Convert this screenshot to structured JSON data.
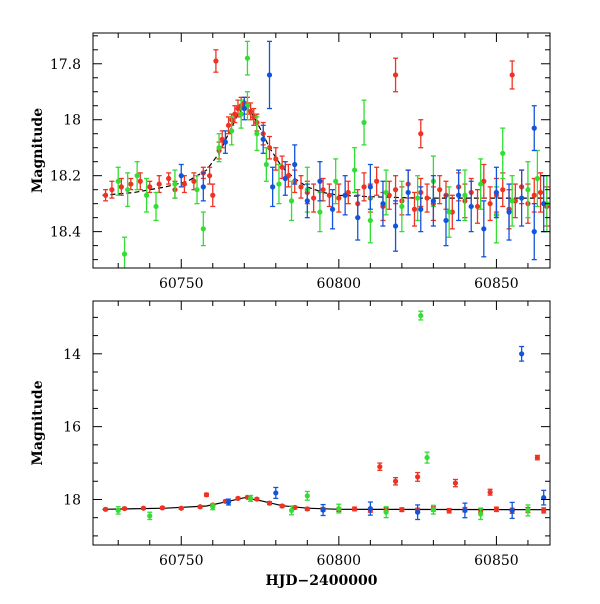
{
  "colors": {
    "red": "#ee3322",
    "green": "#33dd33",
    "blue": "#1155dd",
    "model": "#000000"
  },
  "chart_data": [
    {
      "type": "scatter",
      "panel": "top",
      "xlabel": "",
      "ylabel": "Magnitude",
      "xlim": [
        60722,
        60867
      ],
      "ylim": [
        18.53,
        17.69
      ],
      "y_inverted": true,
      "x_ticks": [
        60750,
        60800,
        60850
      ],
      "x_tick_labels": [
        "60750",
        "60800",
        "60850"
      ],
      "y_ticks": [
        17.8,
        18,
        18.2,
        18.4
      ],
      "y_tick_labels": [
        "17.8",
        "18",
        "18.2",
        "18.4"
      ],
      "model_curve": {
        "x": [
          60725,
          60735,
          60745,
          60752,
          60758,
          60762,
          60765,
          60768,
          60770,
          60772,
          60775,
          60778,
          60782,
          60786,
          60790,
          60795,
          60800,
          60810,
          60825,
          60850,
          60867
        ],
        "y": [
          18.27,
          18.26,
          18.24,
          18.22,
          18.18,
          18.12,
          18.05,
          17.98,
          17.95,
          17.97,
          18.03,
          18.1,
          18.17,
          18.21,
          18.24,
          18.26,
          18.27,
          18.275,
          18.28,
          18.28,
          18.28
        ]
      },
      "series": [
        {
          "color": "red",
          "x": [
            60726,
            60728,
            60731,
            60734,
            60737,
            60740,
            60743,
            60746,
            60748,
            60751,
            60754,
            60757,
            60759,
            60760,
            60762,
            60763,
            60765,
            60766,
            60767,
            60768,
            60769,
            60770,
            60771,
            60772,
            60773,
            60774,
            60776,
            60778,
            60780,
            60782,
            60784,
            60786,
            60788,
            60790,
            60792,
            60795,
            60797,
            60800,
            60803,
            60806,
            60808,
            60810,
            60812,
            60814,
            60816,
            60818,
            60820,
            60822,
            60824,
            60826,
            60828,
            60830,
            60832,
            60834,
            60836,
            60838,
            60840,
            60842,
            60844,
            60846,
            60848,
            60850,
            60852,
            60854,
            60856,
            60858,
            60860,
            60862,
            60864,
            60866,
            60761,
            60818,
            60855,
            60826
          ],
          "y": [
            18.27,
            18.25,
            18.24,
            18.23,
            18.22,
            18.24,
            18.23,
            18.21,
            18.25,
            18.23,
            18.22,
            18.19,
            18.2,
            18.27,
            18.11,
            18.07,
            18.02,
            18,
            17.98,
            17.96,
            17.95,
            17.94,
            17.95,
            17.97,
            17.99,
            18.01,
            18.05,
            18.1,
            18.14,
            18.17,
            18.2,
            18.22,
            18.24,
            18.26,
            18.28,
            18.25,
            18.27,
            18.28,
            18.26,
            18.3,
            18.24,
            18.28,
            18.22,
            18.31,
            18.27,
            18.25,
            18.29,
            18.23,
            18.32,
            18.26,
            18.28,
            18.3,
            18.25,
            18.27,
            18.33,
            18.24,
            18.29,
            18.26,
            18.31,
            18.22,
            18.3,
            18.27,
            18.25,
            18.32,
            18.29,
            18.24,
            18.3,
            18.27,
            18.26,
            18.31,
            17.79,
            17.84,
            17.84,
            18.05
          ],
          "err": [
            0.02,
            0.03,
            0.03,
            0.02,
            0.03,
            0.02,
            0.03,
            0.02,
            0.03,
            0.03,
            0.03,
            0.02,
            0.03,
            0.04,
            0.03,
            0.03,
            0.03,
            0.02,
            0.03,
            0.03,
            0.03,
            0.02,
            0.03,
            0.03,
            0.03,
            0.03,
            0.04,
            0.04,
            0.04,
            0.04,
            0.04,
            0.04,
            0.04,
            0.04,
            0.05,
            0.04,
            0.04,
            0.05,
            0.04,
            0.05,
            0.05,
            0.05,
            0.05,
            0.05,
            0.05,
            0.05,
            0.05,
            0.05,
            0.06,
            0.05,
            0.05,
            0.06,
            0.05,
            0.05,
            0.06,
            0.05,
            0.06,
            0.05,
            0.06,
            0.06,
            0.06,
            0.06,
            0.06,
            0.07,
            0.06,
            0.06,
            0.07,
            0.06,
            0.07,
            0.07,
            0.04,
            0.06,
            0.05,
            0.05
          ]
        },
        {
          "color": "green",
          "x": [
            60730,
            60733,
            60736,
            60739,
            60742,
            60748,
            60755,
            60762,
            60766,
            60769,
            60771,
            60774,
            60777,
            60781,
            60785,
            60790,
            60794,
            60799,
            60805,
            60810,
            60815,
            60820,
            60825,
            60830,
            60835,
            60840,
            60845,
            60850,
            60855,
            60860,
            60863,
            60866,
            60732,
            60757,
            60771,
            60808,
            60852
          ],
          "y": [
            18.22,
            18.25,
            18.2,
            18.27,
            18.31,
            18.23,
            18.25,
            18.1,
            18.04,
            17.98,
            17.95,
            18.05,
            18.16,
            18.23,
            18.29,
            18.25,
            18.33,
            18.22,
            18.18,
            18.36,
            18.26,
            18.31,
            18.28,
            18.22,
            18.33,
            18.27,
            18.23,
            18.34,
            18.29,
            18.25,
            18.21,
            18.3,
            18.48,
            18.39,
            17.78,
            18.01,
            18.12
          ],
          "err": [
            0.05,
            0.06,
            0.05,
            0.06,
            0.05,
            0.05,
            0.05,
            0.05,
            0.05,
            0.05,
            0.05,
            0.06,
            0.06,
            0.07,
            0.07,
            0.08,
            0.07,
            0.08,
            0.08,
            0.08,
            0.08,
            0.09,
            0.08,
            0.09,
            0.09,
            0.09,
            0.09,
            0.1,
            0.09,
            0.1,
            0.1,
            0.1,
            0.06,
            0.06,
            0.06,
            0.08,
            0.09
          ]
        },
        {
          "color": "blue",
          "x": [
            60750,
            60757,
            60764,
            60770,
            60776,
            60779,
            60783,
            60786,
            60790,
            60794,
            60798,
            60802,
            60806,
            60810,
            60814,
            60818,
            60822,
            60826,
            60830,
            60834,
            60838,
            60842,
            60846,
            60850,
            60854,
            60858,
            60862,
            60865,
            60778,
            60862
          ],
          "y": [
            18.2,
            18.24,
            18.08,
            17.96,
            18.07,
            18.24,
            18.21,
            18.16,
            18.29,
            18.22,
            18.32,
            18.27,
            18.35,
            18.24,
            18.3,
            18.38,
            18.26,
            18.32,
            18.29,
            18.36,
            18.27,
            18.31,
            18.39,
            18.26,
            18.33,
            18.28,
            18.4,
            18.3,
            17.84,
            18.03
          ],
          "err": [
            0.04,
            0.05,
            0.04,
            0.04,
            0.05,
            0.07,
            0.06,
            0.07,
            0.06,
            0.07,
            0.07,
            0.07,
            0.08,
            0.08,
            0.08,
            0.09,
            0.08,
            0.08,
            0.09,
            0.09,
            0.09,
            0.09,
            0.1,
            0.09,
            0.1,
            0.1,
            0.1,
            0.1,
            0.12,
            0.08
          ]
        }
      ]
    },
    {
      "type": "scatter",
      "panel": "bottom",
      "xlabel": "HJD−2400000",
      "ylabel": "Magnitude",
      "xlim": [
        60722,
        60867
      ],
      "ylim": [
        19.25,
        12.55
      ],
      "y_inverted": true,
      "x_ticks": [
        60750,
        60800,
        60850
      ],
      "x_tick_labels": [
        "60750",
        "60800",
        "60850"
      ],
      "y_ticks": [
        14,
        16,
        18
      ],
      "y_tick_labels": [
        "14",
        "16",
        "18"
      ],
      "model_curve": {
        "x": [
          60725,
          60745,
          60758,
          60765,
          60770,
          60775,
          60782,
          60790,
          60800,
          60867
        ],
        "y": [
          18.27,
          18.24,
          18.18,
          18.05,
          17.95,
          18.03,
          18.17,
          18.24,
          18.27,
          18.28
        ]
      },
      "series": [
        {
          "color": "red",
          "x": [
            60726,
            60732,
            60738,
            60744,
            60750,
            60756,
            60760,
            60764,
            60768,
            60771,
            60774,
            60778,
            60782,
            60786,
            60790,
            60795,
            60800,
            60805,
            60810,
            60815,
            60820,
            60825,
            60830,
            60835,
            60840,
            60845,
            60850,
            60855,
            60860,
            60865,
            60758,
            60813,
            60818,
            60825,
            60837,
            60848,
            60863
          ],
          "y": [
            18.27,
            18.25,
            18.24,
            18.23,
            18.24,
            18.2,
            18.15,
            18.05,
            17.97,
            17.94,
            17.99,
            18.1,
            18.18,
            18.22,
            18.26,
            18.27,
            18.28,
            18.26,
            18.3,
            18.27,
            18.28,
            18.3,
            18.26,
            18.31,
            18.28,
            18.3,
            18.27,
            18.31,
            18.29,
            18.3,
            17.87,
            17.1,
            17.5,
            17.38,
            17.55,
            17.8,
            16.85
          ],
          "err": [
            0.03,
            0.03,
            0.03,
            0.03,
            0.03,
            0.03,
            0.03,
            0.03,
            0.03,
            0.03,
            0.03,
            0.04,
            0.04,
            0.04,
            0.04,
            0.05,
            0.05,
            0.05,
            0.05,
            0.05,
            0.05,
            0.06,
            0.06,
            0.06,
            0.06,
            0.06,
            0.06,
            0.07,
            0.07,
            0.07,
            0.04,
            0.1,
            0.1,
            0.12,
            0.1,
            0.08,
            0.06
          ]
        },
        {
          "color": "green",
          "x": [
            60730,
            60740,
            60760,
            60772,
            60785,
            60800,
            60815,
            60830,
            60845,
            60860,
            60826,
            60828,
            60790
          ],
          "y": [
            18.3,
            18.45,
            18.2,
            17.97,
            18.3,
            18.25,
            18.35,
            18.28,
            18.4,
            18.3,
            12.95,
            16.85,
            17.9
          ],
          "err": [
            0.1,
            0.1,
            0.08,
            0.08,
            0.12,
            0.12,
            0.15,
            0.12,
            0.15,
            0.15,
            0.12,
            0.15,
            0.12
          ]
        },
        {
          "color": "blue",
          "x": [
            60765,
            60780,
            60795,
            60810,
            60825,
            60840,
            60855,
            60865,
            60858
          ],
          "y": [
            18.07,
            17.82,
            18.29,
            18.25,
            18.35,
            18.3,
            18.3,
            17.95,
            14.0
          ],
          "err": [
            0.08,
            0.15,
            0.15,
            0.18,
            0.2,
            0.2,
            0.22,
            0.2,
            0.2
          ]
        }
      ]
    }
  ]
}
